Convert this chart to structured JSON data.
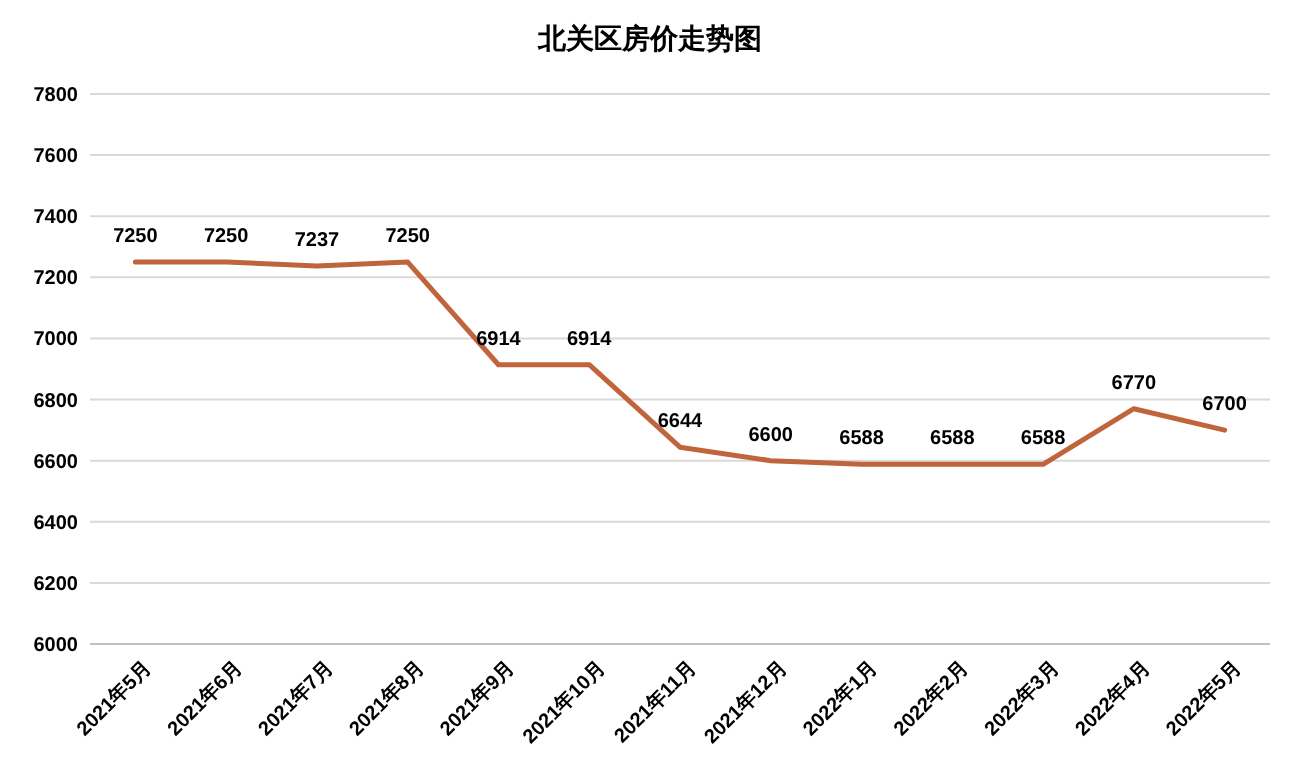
{
  "chart_data": {
    "type": "line",
    "title": "北关区房价走势图",
    "categories": [
      "2021年5月",
      "2021年6月",
      "2021年7月",
      "2021年8月",
      "2021年9月",
      "2021年10月",
      "2021年11月",
      "2021年12月",
      "2022年1月",
      "2022年2月",
      "2022年3月",
      "2022年4月",
      "2022年5月"
    ],
    "series": [
      {
        "color": "#c0643c",
        "values": [
          7250,
          7250,
          7237,
          7250,
          6914,
          6914,
          6644,
          6600,
          6588,
          6588,
          6588,
          6770,
          6700
        ]
      }
    ],
    "ylim": [
      6000,
      7800
    ],
    "yticks": [
      6000,
      6200,
      6400,
      6600,
      6800,
      7000,
      7200,
      7400,
      7600,
      7800
    ],
    "grid": "y",
    "data_labels": true,
    "marker": "none",
    "line_style": "solid"
  }
}
